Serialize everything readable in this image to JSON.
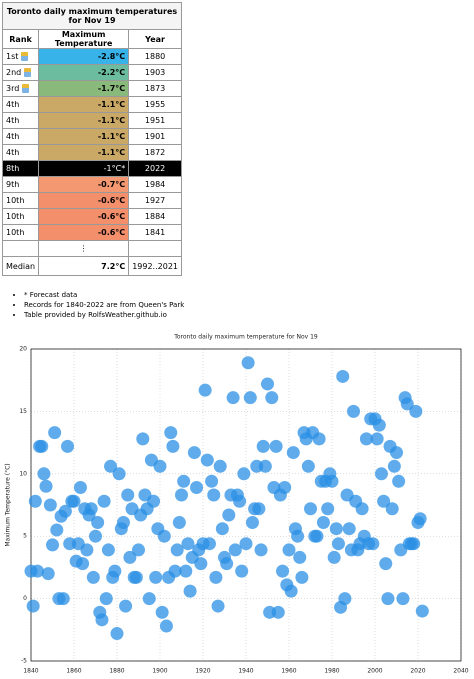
{
  "table": {
    "title": "Toronto daily maximum temperatures for Nov 19",
    "headers": [
      "Rank",
      "Maximum Temperature",
      "Year"
    ],
    "rows": [
      [
        "1st",
        "-2.8°C",
        "1880"
      ],
      [
        "2nd",
        "-2.2°C",
        "1903"
      ],
      [
        "3rd",
        "-1.7°C",
        "1873"
      ],
      [
        "4th",
        "-1.1°C",
        "1955"
      ],
      [
        "4th",
        "-1.1°C",
        "1951"
      ],
      [
        "4th",
        "-1.1°C",
        "1901"
      ],
      [
        "4th",
        "-1.1°C",
        "1872"
      ],
      [
        "8th",
        "-1°C*",
        "2022"
      ],
      [
        "9th",
        "-0.7°C",
        "1984"
      ],
      [
        "10th",
        "-0.6°C",
        "1927"
      ],
      [
        "10th",
        "-0.6°C",
        "1884"
      ],
      [
        "10th",
        "-0.6°C",
        "1841"
      ]
    ],
    "row_colors": [
      "#38b3ea",
      "#6cbca0",
      "#8ab97c",
      "#caa966",
      "#caa966",
      "#caa966",
      "#caa966",
      "#000000",
      "#f39870",
      "#f48f6c",
      "#f48f6c",
      "#f48f6c"
    ],
    "highlight_row": 7,
    "ellipsis": "⋮",
    "median": [
      "Median",
      "7.2°C",
      "1992..2021"
    ]
  },
  "notes": [
    "* Forecast data",
    "Records for 1840-2022 are from Queen's Park",
    "Table provided by RolfsWeather.github.io"
  ],
  "chart_data": {
    "type": "scatter",
    "title": "Toronto daily maximum temperature for Nov 19",
    "y_label": "Maximum Temperature (°C)",
    "xlim": [
      1840,
      2040
    ],
    "xticks": [
      1840,
      1860,
      1880,
      1900,
      1920,
      1940,
      1960,
      1980,
      2000,
      2020,
      2040
    ],
    "ylim": [
      -5,
      20
    ],
    "yticks": [
      -5,
      0,
      5,
      10,
      15,
      20
    ],
    "grid": true,
    "color": "#2a8fe4",
    "x": [
      1840,
      1841,
      1842,
      1843,
      1844,
      1845,
      1846,
      1847,
      1848,
      1849,
      1850,
      1851,
      1852,
      1853,
      1854,
      1855,
      1856,
      1857,
      1858,
      1859,
      1860,
      1861,
      1862,
      1863,
      1864,
      1865,
      1866,
      1867,
      1868,
      1869,
      1870,
      1871,
      1872,
      1873,
      1874,
      1875,
      1876,
      1877,
      1878,
      1879,
      1880,
      1881,
      1882,
      1883,
      1884,
      1885,
      1886,
      1887,
      1888,
      1889,
      1890,
      1891,
      1892,
      1893,
      1894,
      1895,
      1896,
      1897,
      1898,
      1899,
      1900,
      1901,
      1902,
      1903,
      1904,
      1905,
      1906,
      1907,
      1908,
      1909,
      1910,
      1911,
      1912,
      1913,
      1914,
      1915,
      1916,
      1917,
      1918,
      1919,
      1920,
      1921,
      1922,
      1923,
      1924,
      1925,
      1926,
      1927,
      1928,
      1929,
      1930,
      1931,
      1932,
      1933,
      1934,
      1935,
      1936,
      1937,
      1938,
      1939,
      1940,
      1941,
      1942,
      1943,
      1944,
      1945,
      1946,
      1947,
      1948,
      1949,
      1950,
      1951,
      1952,
      1953,
      1954,
      1955,
      1956,
      1957,
      1958,
      1959,
      1960,
      1961,
      1962,
      1963,
      1964,
      1965,
      1966,
      1967,
      1968,
      1969,
      1970,
      1971,
      1972,
      1973,
      1974,
      1975,
      1976,
      1977,
      1978,
      1979,
      1980,
      1981,
      1982,
      1983,
      1984,
      1985,
      1986,
      1987,
      1988,
      1989,
      1990,
      1991,
      1992,
      1993,
      1994,
      1995,
      1996,
      1997,
      1998,
      1999,
      2000,
      2001,
      2002,
      2003,
      2004,
      2005,
      2006,
      2007,
      2008,
      2009,
      2010,
      2011,
      2012,
      2013,
      2014,
      2015,
      2016,
      2017,
      2018,
      2019,
      2020,
      2021,
      2022
    ],
    "values": [
      2.2,
      -0.6,
      7.8,
      2.2,
      12.2,
      12.2,
      10,
      9,
      2,
      7.5,
      4.3,
      13.3,
      5.5,
      0,
      6.6,
      0,
      7,
      12.2,
      4.4,
      7.8,
      7.8,
      3,
      4.4,
      8.9,
      2.8,
      7.2,
      3.9,
      6.7,
      7.2,
      1.7,
      5,
      6.1,
      -1.1,
      -1.7,
      7.8,
      0,
      3.9,
      10.6,
      1.7,
      2.2,
      -2.8,
      10,
      5.6,
      6.1,
      -0.6,
      8.3,
      3.3,
      7.2,
      1.7,
      1.7,
      3.9,
      6.7,
      12.8,
      8.3,
      7.2,
      0,
      11.1,
      7.8,
      1.7,
      5.6,
      10.6,
      -1.1,
      5,
      -2.2,
      1.7,
      13.3,
      12.2,
      2.2,
      3.9,
      6.1,
      8.3,
      9.4,
      2.2,
      4.4,
      0.6,
      3.3,
      11.7,
      8.9,
      3.9,
      2.8,
      4.4,
      16.7,
      11.1,
      4.4,
      9.4,
      8.3,
      1.7,
      -0.6,
      10.6,
      5.6,
      3.3,
      2.8,
      6.7,
      8.3,
      16.1,
      3.9,
      8.3,
      7.8,
      2.2,
      10,
      4.4,
      18.9,
      16.1,
      6.1,
      7.2,
      10.6,
      7.2,
      3.9,
      12.2,
      10.6,
      17.2,
      -1.1,
      16.1,
      8.9,
      12.2,
      -1.1,
      8.3,
      2.2,
      8.9,
      1.1,
      3.9,
      0.6,
      11.7,
      5.6,
      5,
      3.3,
      1.7,
      13.3,
      12.8,
      10.6,
      7.2,
      13.3,
      5,
      5,
      12.8,
      9.4,
      6.1,
      9.4,
      7.2,
      10,
      9.4,
      3.3,
      5.6,
      4.4,
      -0.7,
      17.8,
      0,
      8.3,
      5.6,
      3.9,
      15,
      7.8,
      3.9,
      4.4,
      7.2,
      5,
      12.8,
      4.4,
      14.4,
      4.4,
      14.4,
      12.8,
      13.9,
      10,
      7.8,
      2.8,
      0,
      12.2,
      7.2,
      10.6,
      11.7,
      9.4,
      3.9,
      0,
      16.1,
      15.6,
      4.4,
      4.4,
      4.4,
      15,
      6.1,
      6.4,
      -1
    ]
  }
}
